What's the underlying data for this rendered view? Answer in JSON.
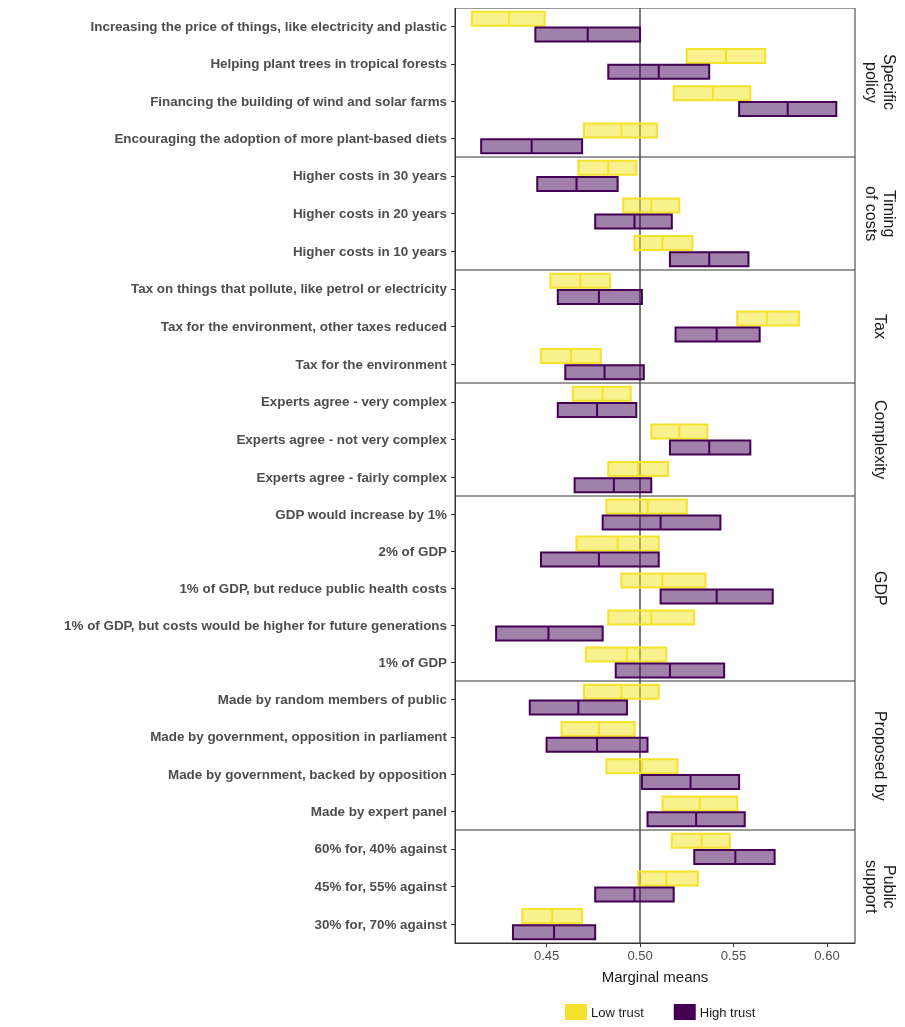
{
  "chart_data": [
    {
      "type": "box",
      "orientation": "horizontal",
      "y2label": "Specific\npolicy",
      "tick_labels": "y",
      "categories": [
        "Increasing the price of things, like electricity and plastic",
        "Helping plant trees in tropical forests",
        "Financing the building of wind and solar farms",
        "Encouraging the adoption of more plant-based diets"
      ],
      "series": [
        {
          "color": "#f4e21e",
          "boxes": [
            {
              "low": 0.41,
              "q1": 0.41,
              "median": 0.43,
              "q3": 0.449,
              "high": 0.449
            },
            {
              "low": 0.525,
              "q1": 0.525,
              "median": 0.546,
              "q3": 0.567,
              "high": 0.567
            },
            {
              "low": 0.518,
              "q1": 0.518,
              "median": 0.539,
              "q3": 0.559,
              "high": 0.559
            },
            {
              "low": 0.47,
              "q1": 0.47,
              "median": 0.49,
              "q3": 0.509,
              "high": 0.509
            }
          ]
        },
        {
          "color": "#440154",
          "boxes": [
            {
              "low": 0.444,
              "q1": 0.444,
              "median": 0.472,
              "q3": 0.5,
              "high": 0.5
            },
            {
              "low": 0.483,
              "q1": 0.483,
              "median": 0.51,
              "q3": 0.537,
              "high": 0.537
            },
            {
              "low": 0.553,
              "q1": 0.553,
              "median": 0.579,
              "q3": 0.605,
              "high": 0.605
            },
            {
              "low": 0.415,
              "q1": 0.415,
              "median": 0.442,
              "q3": 0.469,
              "high": 0.469
            }
          ]
        }
      ],
      "xlim": [
        0.401,
        0.615
      ],
      "ref_lines": [
        {
          "axis": "x",
          "value": 0.5,
          "color": "#4d4d4d"
        }
      ]
    },
    {
      "type": "box",
      "orientation": "horizontal",
      "y2label": "Timing\nof costs",
      "tick_labels": "y",
      "categories": [
        "Higher costs in 30 years",
        "Higher costs in 20 years",
        "Higher costs in 10 years"
      ],
      "series": [
        {
          "color": "#f4e21e",
          "boxes": [
            {
              "low": 0.467,
              "q1": 0.467,
              "median": 0.483,
              "q3": 0.498,
              "high": 0.498
            },
            {
              "low": 0.491,
              "q1": 0.491,
              "median": 0.506,
              "q3": 0.521,
              "high": 0.521
            },
            {
              "low": 0.497,
              "q1": 0.497,
              "median": 0.512,
              "q3": 0.528,
              "high": 0.528
            }
          ]
        },
        {
          "color": "#440154",
          "boxes": [
            {
              "low": 0.445,
              "q1": 0.445,
              "median": 0.466,
              "q3": 0.488,
              "high": 0.488
            },
            {
              "low": 0.476,
              "q1": 0.476,
              "median": 0.497,
              "q3": 0.517,
              "high": 0.517
            },
            {
              "low": 0.516,
              "q1": 0.516,
              "median": 0.537,
              "q3": 0.558,
              "high": 0.558
            }
          ]
        }
      ],
      "xlim": [
        0.401,
        0.615
      ],
      "ref_lines": [
        {
          "axis": "x",
          "value": 0.5,
          "color": "#4d4d4d"
        }
      ]
    },
    {
      "type": "box",
      "orientation": "horizontal",
      "y2label": "Tax",
      "tick_labels": "y",
      "categories": [
        "Tax on things that pollute, like petrol or electricity",
        "Tax for the environment, other taxes reduced",
        "Tax for the environment"
      ],
      "series": [
        {
          "color": "#f4e21e",
          "boxes": [
            {
              "low": 0.452,
              "q1": 0.452,
              "median": 0.468,
              "q3": 0.484,
              "high": 0.484
            },
            {
              "low": 0.552,
              "q1": 0.552,
              "median": 0.568,
              "q3": 0.585,
              "high": 0.585
            },
            {
              "low": 0.447,
              "q1": 0.447,
              "median": 0.463,
              "q3": 0.479,
              "high": 0.479
            }
          ]
        },
        {
          "color": "#440154",
          "boxes": [
            {
              "low": 0.456,
              "q1": 0.456,
              "median": 0.478,
              "q3": 0.501,
              "high": 0.501
            },
            {
              "low": 0.519,
              "q1": 0.519,
              "median": 0.541,
              "q3": 0.564,
              "high": 0.564
            },
            {
              "low": 0.46,
              "q1": 0.46,
              "median": 0.481,
              "q3": 0.502,
              "high": 0.502
            }
          ]
        }
      ],
      "xlim": [
        0.401,
        0.615
      ],
      "ref_lines": [
        {
          "axis": "x",
          "value": 0.5,
          "color": "#4d4d4d"
        }
      ]
    },
    {
      "type": "box",
      "orientation": "horizontal",
      "y2label": "Complexity",
      "tick_labels": "y",
      "categories": [
        "Experts agree - very complex",
        "Experts agree - not very complex",
        "Experts agree - fairly complex"
      ],
      "series": [
        {
          "color": "#f4e21e",
          "boxes": [
            {
              "low": 0.464,
              "q1": 0.464,
              "median": 0.48,
              "q3": 0.495,
              "high": 0.495
            },
            {
              "low": 0.506,
              "q1": 0.506,
              "median": 0.521,
              "q3": 0.536,
              "high": 0.536
            },
            {
              "low": 0.483,
              "q1": 0.483,
              "median": 0.499,
              "q3": 0.515,
              "high": 0.515
            }
          ]
        },
        {
          "color": "#440154",
          "boxes": [
            {
              "low": 0.456,
              "q1": 0.456,
              "median": 0.477,
              "q3": 0.498,
              "high": 0.498
            },
            {
              "low": 0.516,
              "q1": 0.516,
              "median": 0.537,
              "q3": 0.559,
              "high": 0.559
            },
            {
              "low": 0.465,
              "q1": 0.465,
              "median": 0.486,
              "q3": 0.506,
              "high": 0.506
            }
          ]
        }
      ],
      "xlim": [
        0.401,
        0.615
      ],
      "ref_lines": [
        {
          "axis": "x",
          "value": 0.5,
          "color": "#4d4d4d"
        }
      ]
    },
    {
      "type": "box",
      "orientation": "horizontal",
      "y2label": "GDP",
      "tick_labels": "y",
      "categories": [
        "GDP would increase by 1%",
        "2% of GDP",
        "1% of GDP, but reduce public health costs",
        "1% of GDP, but costs would be higher for future generations",
        "1% of GDP"
      ],
      "series": [
        {
          "color": "#f4e21e",
          "boxes": [
            {
              "low": 0.482,
              "q1": 0.482,
              "median": 0.504,
              "q3": 0.525,
              "high": 0.525
            },
            {
              "low": 0.466,
              "q1": 0.466,
              "median": 0.488,
              "q3": 0.51,
              "high": 0.51
            },
            {
              "low": 0.49,
              "q1": 0.49,
              "median": 0.512,
              "q3": 0.535,
              "high": 0.535
            },
            {
              "low": 0.483,
              "q1": 0.483,
              "median": 0.506,
              "q3": 0.529,
              "high": 0.529
            },
            {
              "low": 0.471,
              "q1": 0.471,
              "median": 0.493,
              "q3": 0.514,
              "high": 0.514
            }
          ]
        },
        {
          "color": "#440154",
          "boxes": [
            {
              "low": 0.48,
              "q1": 0.48,
              "median": 0.511,
              "q3": 0.543,
              "high": 0.543
            },
            {
              "low": 0.447,
              "q1": 0.447,
              "median": 0.478,
              "q3": 0.51,
              "high": 0.51
            },
            {
              "low": 0.511,
              "q1": 0.511,
              "median": 0.541,
              "q3": 0.571,
              "high": 0.571
            },
            {
              "low": 0.423,
              "q1": 0.423,
              "median": 0.451,
              "q3": 0.48,
              "high": 0.48
            },
            {
              "low": 0.487,
              "q1": 0.487,
              "median": 0.516,
              "q3": 0.545,
              "high": 0.545
            }
          ]
        }
      ],
      "xlim": [
        0.401,
        0.615
      ],
      "ref_lines": [
        {
          "axis": "x",
          "value": 0.5,
          "color": "#4d4d4d"
        }
      ]
    },
    {
      "type": "box",
      "orientation": "horizontal",
      "y2label": "Proposed by",
      "tick_labels": "y",
      "categories": [
        "Made by random members of public",
        "Made by government, opposition in parliament",
        "Made by government, backed by opposition",
        "Made by expert panel"
      ],
      "series": [
        {
          "color": "#f4e21e",
          "boxes": [
            {
              "low": 0.47,
              "q1": 0.47,
              "median": 0.49,
              "q3": 0.51,
              "high": 0.51
            },
            {
              "low": 0.458,
              "q1": 0.458,
              "median": 0.478,
              "q3": 0.497,
              "high": 0.497
            },
            {
              "low": 0.482,
              "q1": 0.482,
              "median": 0.501,
              "q3": 0.52,
              "high": 0.52
            },
            {
              "low": 0.512,
              "q1": 0.512,
              "median": 0.532,
              "q3": 0.552,
              "high": 0.552
            }
          ]
        },
        {
          "color": "#440154",
          "boxes": [
            {
              "low": 0.441,
              "q1": 0.441,
              "median": 0.467,
              "q3": 0.493,
              "high": 0.493
            },
            {
              "low": 0.45,
              "q1": 0.45,
              "median": 0.477,
              "q3": 0.504,
              "high": 0.504
            },
            {
              "low": 0.501,
              "q1": 0.501,
              "median": 0.527,
              "q3": 0.553,
              "high": 0.553
            },
            {
              "low": 0.504,
              "q1": 0.504,
              "median": 0.53,
              "q3": 0.556,
              "high": 0.556
            }
          ]
        }
      ],
      "xlim": [
        0.401,
        0.615
      ],
      "ref_lines": [
        {
          "axis": "x",
          "value": 0.5,
          "color": "#4d4d4d"
        }
      ]
    },
    {
      "type": "box",
      "orientation": "horizontal",
      "y2label": "Public\nsupport",
      "xlabel": "Marginal means",
      "legend": "bottom",
      "categories": [
        "60% for, 40% against",
        "45% for, 55% against",
        "30% for, 70% against"
      ],
      "series": [
        {
          "name": "Low trust",
          "color": "#f4e21e",
          "boxes": [
            {
              "low": 0.517,
              "q1": 0.517,
              "median": 0.533,
              "q3": 0.548,
              "high": 0.548
            },
            {
              "low": 0.499,
              "q1": 0.499,
              "median": 0.514,
              "q3": 0.531,
              "high": 0.531
            },
            {
              "low": 0.437,
              "q1": 0.437,
              "median": 0.453,
              "q3": 0.469,
              "high": 0.469
            }
          ]
        },
        {
          "name": "High trust",
          "color": "#440154",
          "boxes": [
            {
              "low": 0.529,
              "q1": 0.529,
              "median": 0.551,
              "q3": 0.572,
              "high": 0.572
            },
            {
              "low": 0.476,
              "q1": 0.476,
              "median": 0.497,
              "q3": 0.518,
              "high": 0.518
            },
            {
              "low": 0.432,
              "q1": 0.432,
              "median": 0.454,
              "q3": 0.476,
              "high": 0.476
            }
          ]
        }
      ],
      "xlim": [
        0.401,
        0.615
      ],
      "xticks": [
        0.45,
        {
          "value": 0.5,
          "label": "0.50"
        },
        0.55,
        {
          "value": 0.6,
          "label": "0.60"
        }
      ],
      "ref_lines": [
        {
          "axis": "x",
          "value": 0.5,
          "color": "#4d4d4d"
        }
      ]
    }
  ]
}
